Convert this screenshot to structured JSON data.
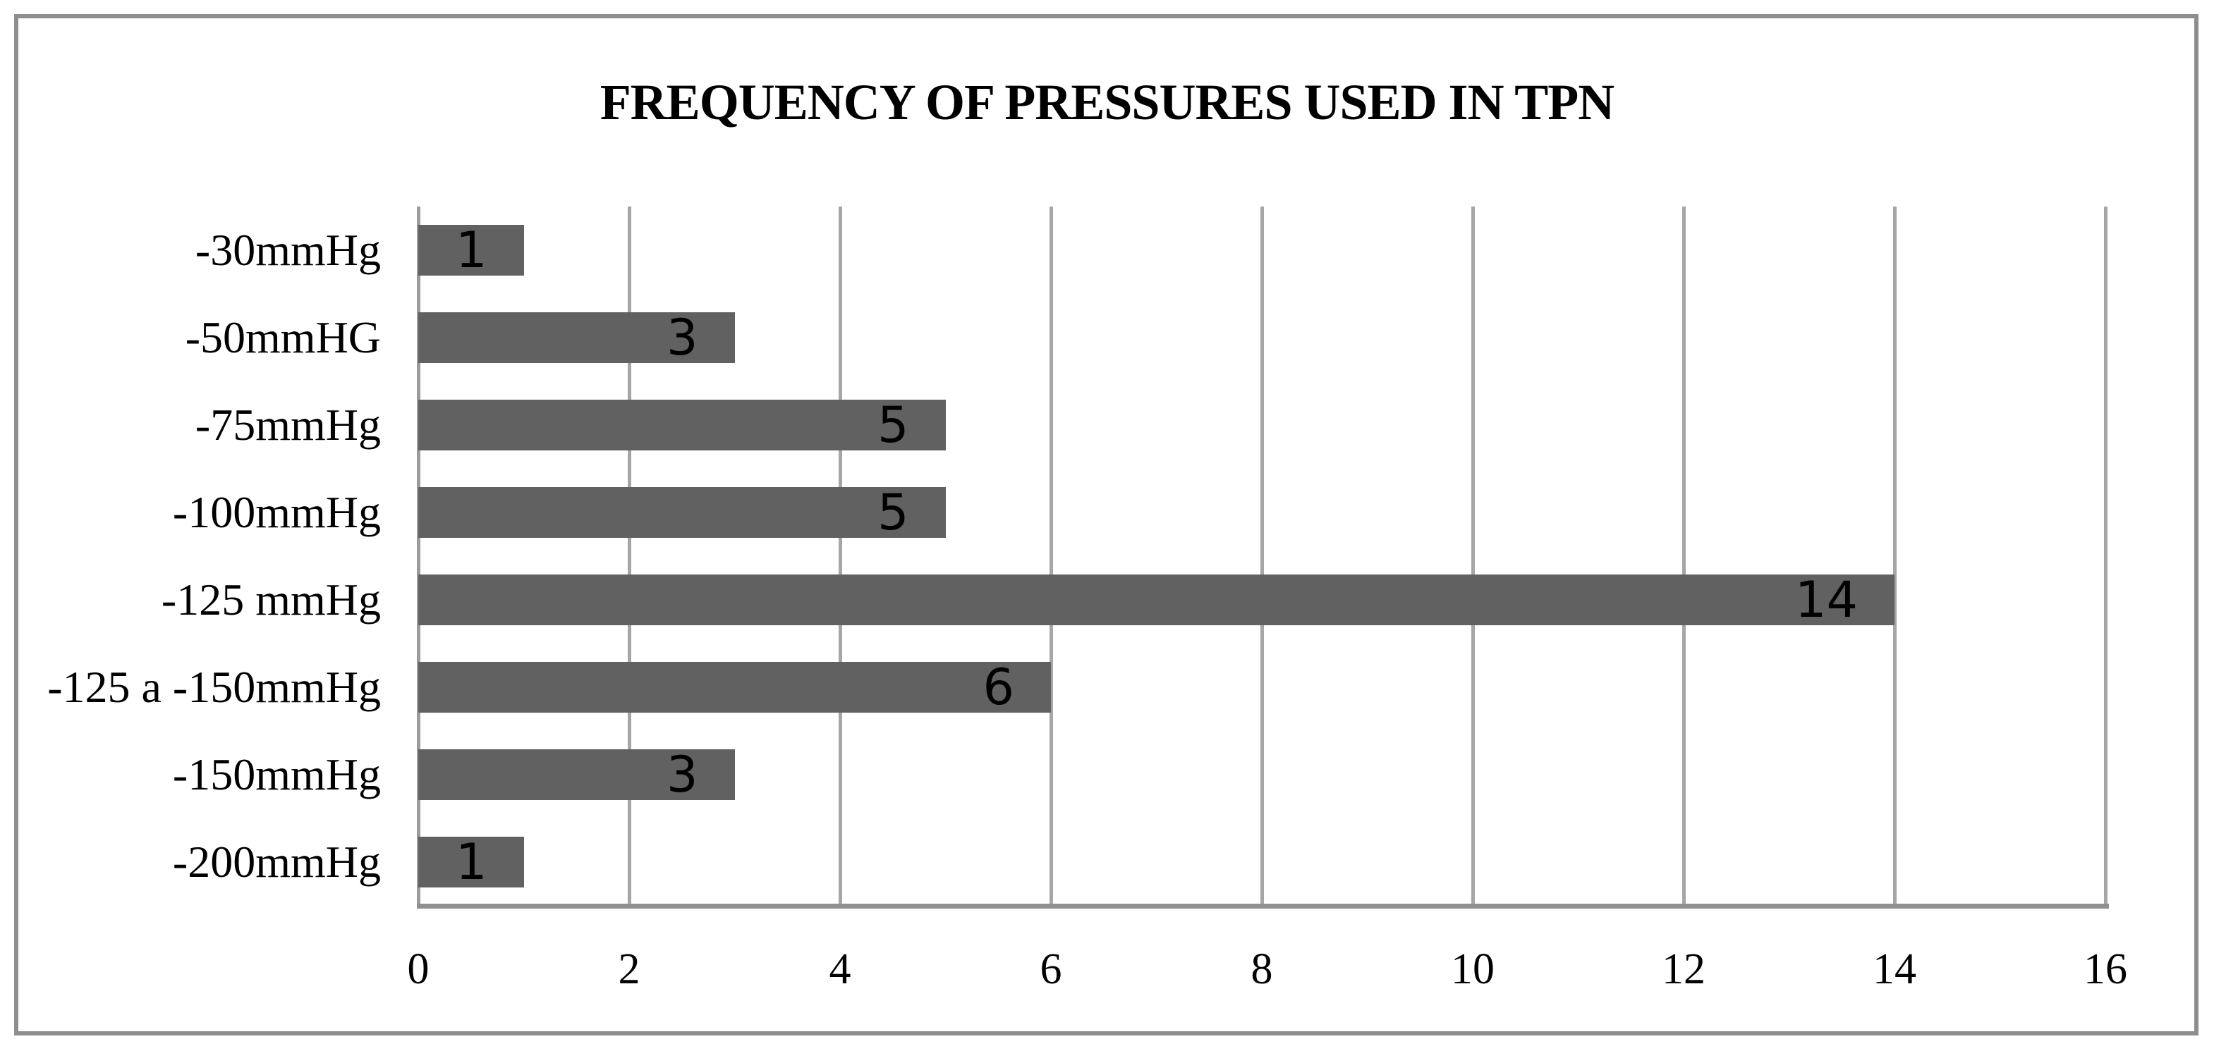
{
  "chart_data": {
    "type": "bar",
    "orientation": "horizontal",
    "title": "FREQUENCY OF PRESSURES USED IN TPN",
    "categories": [
      "-30mmHg",
      "-50mmHG",
      "-75mmHg",
      "-100mmHg",
      "-125 mmHg",
      "-125 a -150mmHg",
      "-150mmHg",
      "-200mmHg"
    ],
    "values": [
      1,
      3,
      5,
      5,
      14,
      6,
      3,
      1
    ],
    "xlabel": "",
    "ylabel": "",
    "xlim": [
      0,
      16
    ],
    "xticks": [
      0,
      2,
      4,
      6,
      8,
      10,
      12,
      14,
      16
    ],
    "grid": "vertical-gridlines",
    "legend": "none",
    "value_label_position": "inside-end",
    "colors": {
      "bar": "#616161",
      "gridline": "#a6a6a6",
      "zero_axis": "#9b9b9b",
      "x_axis_line": "#8f8f8f",
      "frame_border": "#8e8e8e",
      "text": "#000000",
      "background": "#ffffff"
    }
  }
}
